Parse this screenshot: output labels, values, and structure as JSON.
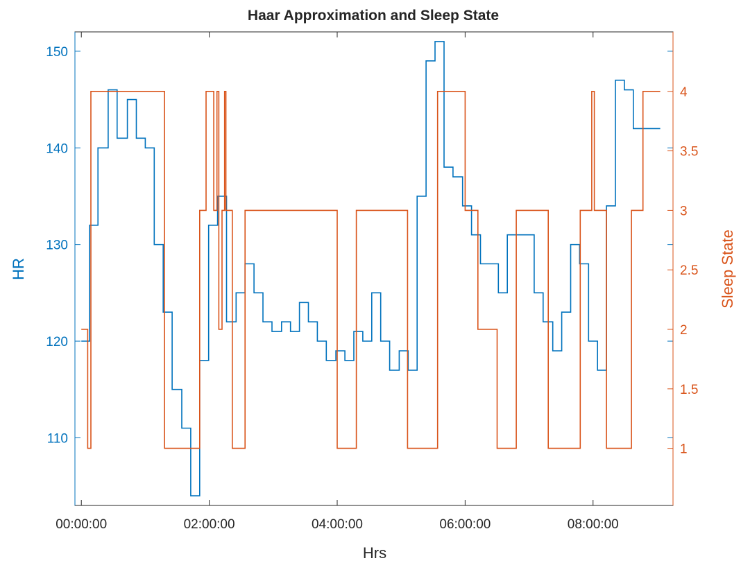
{
  "chart_data": {
    "type": "line",
    "title": "Haar Approximation and Sleep State",
    "xlabel": "Hrs",
    "ylabel_left": "HR",
    "ylabel_right": "Sleep State",
    "x_unit": "hours",
    "xlim": [
      -0.1,
      9.25
    ],
    "x_ticks": [
      0,
      2,
      4,
      6,
      8
    ],
    "x_tick_labels": [
      "00:00:00",
      "02:00:00",
      "04:00:00",
      "06:00:00",
      "08:00:00"
    ],
    "ylim_left": [
      103,
      152
    ],
    "y_ticks_left": [
      110,
      120,
      130,
      140,
      150
    ],
    "y_tick_labels_left": [
      "110",
      "120",
      "130",
      "140",
      "150"
    ],
    "ylim_right": [
      0.52,
      4.5
    ],
    "y_ticks_right": [
      1,
      1.5,
      2,
      2.5,
      3,
      3.5,
      4
    ],
    "y_tick_labels_right": [
      "1",
      "1.5",
      "2",
      "2.5",
      "3",
      "3.5",
      "4"
    ],
    "grid": false,
    "colors": {
      "hr": "#0072BD",
      "sleep": "#D95319",
      "axes": "#262626"
    },
    "series": [
      {
        "axis": "left",
        "step": true,
        "x": [
          0,
          0.13,
          0.26,
          0.42,
          0.56,
          0.72,
          0.86,
          1.0,
          1.14,
          1.28,
          1.42,
          1.57,
          1.71,
          1.85,
          1.99,
          2.13,
          2.27,
          2.42,
          2.56,
          2.7,
          2.84,
          2.98,
          3.13,
          3.27,
          3.41,
          3.55,
          3.69,
          3.83,
          3.98,
          4.12,
          4.26,
          4.4,
          4.54,
          4.68,
          4.82,
          4.97,
          5.11,
          5.25,
          5.39,
          5.53,
          5.67,
          5.81,
          5.96,
          6.1,
          6.24,
          6.38,
          6.52,
          6.66,
          6.8,
          6.94,
          7.08,
          7.22,
          7.37,
          7.51,
          7.65,
          7.79,
          7.93,
          8.07,
          8.21,
          8.35,
          8.49,
          8.63,
          8.77,
          8.91,
          9.05
        ],
        "y": [
          120,
          132,
          140,
          146,
          141,
          145,
          141,
          140,
          130,
          123,
          115,
          111,
          104,
          118,
          132,
          135,
          122,
          125,
          128,
          125,
          122,
          121,
          122,
          121,
          124,
          122,
          120,
          118,
          119,
          118,
          121,
          120,
          125,
          120,
          117,
          119,
          117,
          135,
          149,
          151,
          138,
          137,
          134,
          131,
          128,
          128,
          125,
          131,
          131,
          131,
          125,
          122,
          119,
          123,
          130,
          128,
          120,
          117,
          134,
          147,
          146,
          142,
          142,
          142,
          142
        ]
      },
      {
        "axis": "right",
        "step": true,
        "x": [
          0,
          0.1,
          0.15,
          0.26,
          0.42,
          0.56,
          0.72,
          0.86,
          1.0,
          1.14,
          1.3,
          1.42,
          1.57,
          1.71,
          1.85,
          1.95,
          2.07,
          2.12,
          2.15,
          2.2,
          2.24,
          2.26,
          2.36,
          2.56,
          2.7,
          3.0,
          3.42,
          3.55,
          3.7,
          4.0,
          4.3,
          4.6,
          5.0,
          5.1,
          5.25,
          5.5,
          5.57,
          5.69,
          5.81,
          6.0,
          6.2,
          6.5,
          6.8,
          7.0,
          7.3,
          7.51,
          7.8,
          7.98,
          8.02,
          8.21,
          8.4,
          8.6,
          8.78,
          9.05
        ],
        "y": [
          2,
          1,
          4,
          4,
          4,
          4,
          4,
          4,
          4,
          4,
          1,
          1,
          1,
          1,
          3,
          4,
          3,
          4,
          2,
          3,
          4,
          3,
          1,
          3,
          3,
          3,
          3,
          3,
          3,
          1,
          3,
          3,
          3,
          1,
          1,
          1,
          4,
          4,
          4,
          3,
          2,
          1,
          3,
          3,
          1,
          1,
          3,
          4,
          3,
          1,
          1,
          3,
          4,
          4
        ]
      }
    ]
  }
}
